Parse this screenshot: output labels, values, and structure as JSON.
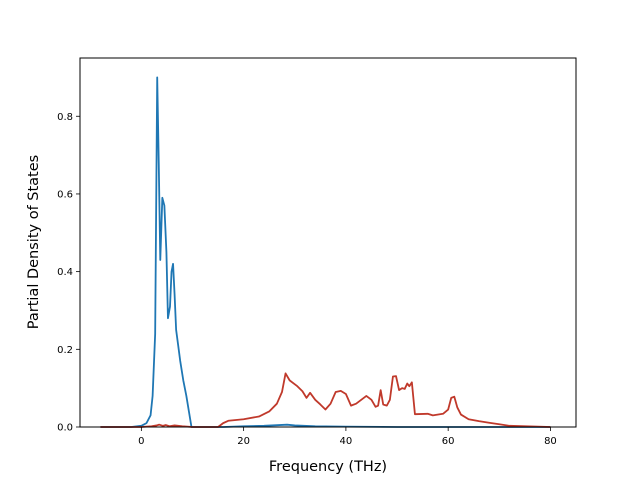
{
  "chart_data": {
    "type": "line",
    "title": "",
    "xlabel": "Frequency (THz)",
    "ylabel": "Partial Density of States",
    "xlim": [
      -12,
      85
    ],
    "ylim": [
      0,
      0.95
    ],
    "xticks": [
      0,
      20,
      40,
      60,
      80
    ],
    "yticks": [
      0.0,
      0.2,
      0.4,
      0.6,
      0.8
    ],
    "xtick_labels": [
      "0",
      "20",
      "40",
      "60",
      "80"
    ],
    "ytick_labels": [
      "0.0",
      "0.2",
      "0.4",
      "0.6",
      "0.8"
    ],
    "grid": false,
    "legend": "none",
    "series": [
      {
        "color": "#1f77b4",
        "x": [
          -8,
          -2,
          0,
          1,
          1.8,
          2.2,
          2.7,
          3.1,
          3.4,
          3.7,
          4.1,
          4.5,
          4.9,
          5.2,
          5.6,
          5.9,
          6.2,
          6.5,
          6.8,
          7.2,
          7.6,
          8.2,
          8.8,
          9.3,
          9.8,
          10.5,
          12,
          16,
          20,
          24,
          27,
          28.5,
          30,
          34,
          40,
          50,
          60,
          70,
          80
        ],
        "y": [
          0,
          0,
          0.003,
          0.01,
          0.03,
          0.08,
          0.24,
          0.9,
          0.68,
          0.43,
          0.59,
          0.57,
          0.45,
          0.28,
          0.31,
          0.4,
          0.42,
          0.34,
          0.25,
          0.21,
          0.17,
          0.12,
          0.08,
          0.04,
          0.0,
          0.0,
          0.0,
          0.0,
          0.002,
          0.003,
          0.005,
          0.006,
          0.004,
          0.002,
          0.001,
          0.0,
          0.0,
          0.0,
          0.0
        ]
      },
      {
        "color": "#c0392b",
        "x": [
          -8,
          0,
          2,
          3,
          3.5,
          4.2,
          4.8,
          5.5,
          6.5,
          8,
          10,
          15,
          16,
          17,
          20,
          23,
          25,
          26.5,
          27.5,
          28.2,
          29,
          30.5,
          31.5,
          32.3,
          33,
          34,
          35,
          36,
          37,
          38,
          39,
          40,
          41,
          42,
          43,
          44,
          45,
          45.8,
          46.3,
          46.8,
          47.3,
          48,
          48.6,
          49.2,
          49.8,
          50.4,
          51,
          51.5,
          52,
          52.4,
          52.9,
          53.5,
          56,
          57,
          59,
          60,
          60.6,
          61.2,
          61.8,
          62.5,
          64,
          66,
          68,
          70,
          72,
          80
        ],
        "y": [
          0,
          0,
          0.002,
          0.004,
          0.006,
          0.003,
          0.005,
          0.002,
          0.004,
          0.002,
          0,
          0,
          0.01,
          0.016,
          0.02,
          0.027,
          0.04,
          0.06,
          0.09,
          0.138,
          0.12,
          0.105,
          0.092,
          0.075,
          0.088,
          0.07,
          0.058,
          0.045,
          0.06,
          0.09,
          0.093,
          0.085,
          0.055,
          0.06,
          0.07,
          0.08,
          0.07,
          0.052,
          0.055,
          0.095,
          0.058,
          0.055,
          0.07,
          0.13,
          0.131,
          0.095,
          0.1,
          0.098,
          0.112,
          0.105,
          0.115,
          0.033,
          0.034,
          0.03,
          0.034,
          0.045,
          0.075,
          0.078,
          0.05,
          0.032,
          0.02,
          0.015,
          0.011,
          0.007,
          0.003,
          0.0
        ]
      }
    ]
  }
}
